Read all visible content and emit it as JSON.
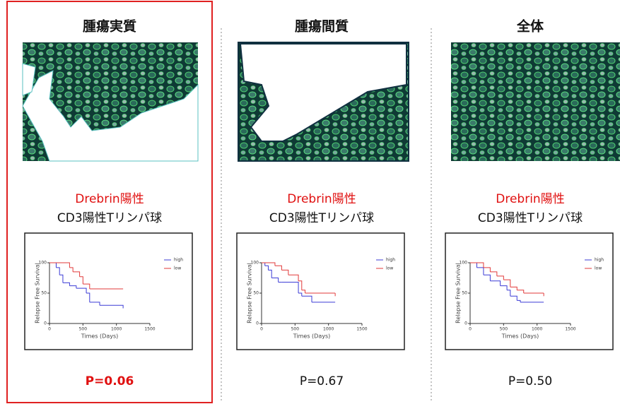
{
  "panels": [
    {
      "title": "腫瘍実質",
      "marker": "Drebrin陽性",
      "cell": "CD3陽性Tリンパ球",
      "p_value": "P=0.06"
    },
    {
      "title": "腫瘍間質",
      "marker": "Drebrin陽性",
      "cell": "CD3陽性Tリンパ球",
      "p_value": "P=0.67"
    },
    {
      "title": "全体",
      "marker": "Drebrin陽性",
      "cell": "CD3陽性Tリンパ球",
      "p_value": "P=0.50"
    }
  ],
  "chart_data": [
    {
      "type": "line",
      "x_label": "Times (Days)",
      "y_label": "Relapse Free Survival",
      "xlim": [
        0,
        1500
      ],
      "xticks": [
        0,
        500,
        1000,
        1500
      ],
      "ylim": [
        0,
        100
      ],
      "yticks": [
        0,
        50,
        100
      ],
      "series": [
        {
          "name": "high",
          "color": "#3b3bd6",
          "x": [
            0,
            100,
            150,
            200,
            300,
            400,
            550,
            600,
            750,
            1100
          ],
          "values": [
            100,
            92,
            80,
            67,
            62,
            58,
            50,
            35,
            30,
            25
          ]
        },
        {
          "name": "low",
          "color": "#e23a3a",
          "x": [
            0,
            300,
            350,
            450,
            500,
            600,
            750,
            1100
          ],
          "values": [
            100,
            92,
            85,
            77,
            65,
            57,
            57,
            57
          ]
        }
      ]
    },
    {
      "type": "line",
      "x_label": "Times (Days)",
      "y_label": "Relapse Free Survival",
      "xlim": [
        0,
        1500
      ],
      "xticks": [
        0,
        500,
        1000,
        1500
      ],
      "ylim": [
        0,
        100
      ],
      "yticks": [
        0,
        50,
        100
      ],
      "series": [
        {
          "name": "high",
          "color": "#3b3bd6",
          "x": [
            0,
            50,
            100,
            150,
            250,
            300,
            550,
            600,
            750,
            1100
          ],
          "values": [
            100,
            95,
            88,
            75,
            68,
            68,
            50,
            45,
            35,
            35
          ]
        },
        {
          "name": "low",
          "color": "#e23a3a",
          "x": [
            0,
            200,
            300,
            400,
            550,
            600,
            650,
            1100,
            1100
          ],
          "values": [
            100,
            95,
            88,
            80,
            70,
            55,
            50,
            50,
            45
          ]
        }
      ]
    },
    {
      "type": "line",
      "x_label": "Times (Days)",
      "y_label": "Relapse Free Survival",
      "xlim": [
        0,
        1500
      ],
      "xticks": [
        0,
        500,
        1000,
        1500
      ],
      "ylim": [
        0,
        100
      ],
      "yticks": [
        0,
        50,
        100
      ],
      "series": [
        {
          "name": "high",
          "color": "#3b3bd6",
          "x": [
            0,
            100,
            200,
            300,
            450,
            550,
            600,
            700,
            750,
            1100
          ],
          "values": [
            100,
            92,
            80,
            70,
            62,
            55,
            45,
            38,
            35,
            35
          ]
        },
        {
          "name": "low",
          "color": "#e23a3a",
          "x": [
            0,
            200,
            300,
            400,
            500,
            600,
            700,
            800,
            1100,
            1100
          ],
          "values": [
            100,
            92,
            85,
            78,
            72,
            60,
            55,
            50,
            50,
            45
          ]
        }
      ]
    }
  ]
}
